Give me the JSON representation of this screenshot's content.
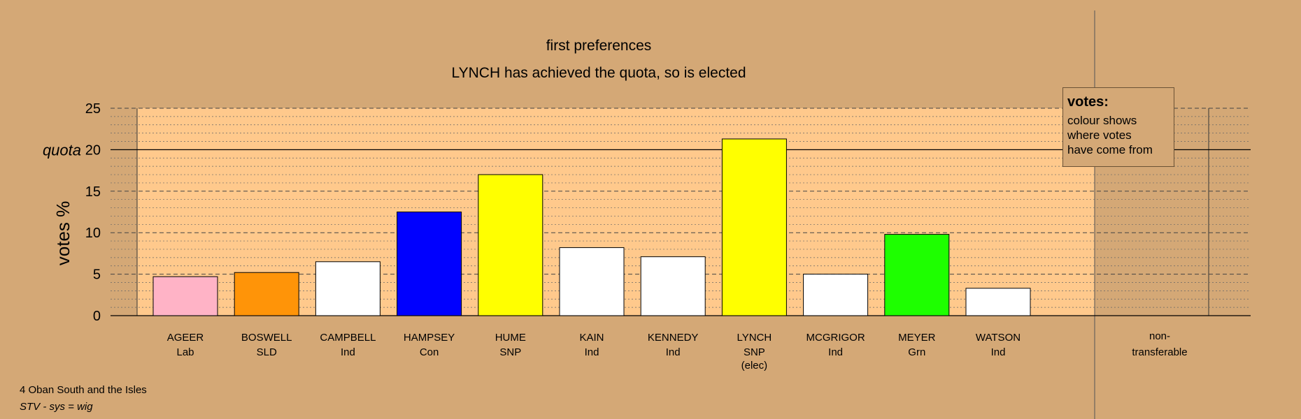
{
  "chart_data": {
    "type": "bar",
    "title": "first preferences",
    "subtitle": "LYNCH has achieved the quota, so is elected",
    "ylabel": "votes %",
    "ylim": [
      0,
      25
    ],
    "yticks": [
      0,
      5,
      10,
      15,
      20,
      25
    ],
    "quota": 20,
    "quota_label": "quota",
    "grid": true,
    "categories": [
      {
        "name": "AGEER",
        "party": "Lab",
        "note": "",
        "value": 4.7,
        "color": "#ffb3c6"
      },
      {
        "name": "BOSWELL",
        "party": "SLD",
        "note": "",
        "value": 5.2,
        "color": "#ff9408"
      },
      {
        "name": "CAMPBELL",
        "party": "Ind",
        "note": "",
        "value": 6.5,
        "color": "#ffffff"
      },
      {
        "name": "HAMPSEY",
        "party": "Con",
        "note": "",
        "value": 12.5,
        "color": "#0000ff"
      },
      {
        "name": "HUME",
        "party": "SNP",
        "note": "",
        "value": 17.0,
        "color": "#ffff00"
      },
      {
        "name": "KAIN",
        "party": "Ind",
        "note": "",
        "value": 8.2,
        "color": "#ffffff"
      },
      {
        "name": "KENNEDY",
        "party": "Ind",
        "note": "",
        "value": 7.1,
        "color": "#ffffff"
      },
      {
        "name": "LYNCH",
        "party": "SNP",
        "note": "(elec)",
        "value": 21.3,
        "color": "#ffff00"
      },
      {
        "name": "MCGRIGOR",
        "party": "Ind",
        "note": "",
        "value": 5.0,
        "color": "#ffffff"
      },
      {
        "name": "MEYER",
        "party": "Grn",
        "note": "",
        "value": 9.8,
        "color": "#1eff00"
      },
      {
        "name": "WATSON",
        "party": "Ind",
        "note": "",
        "value": 3.3,
        "color": "#ffffff"
      }
    ],
    "nontransferable": {
      "line1": "non-",
      "line2": "transferable",
      "value": 0
    },
    "legend": {
      "title": "votes:",
      "lines": [
        "colour shows",
        "where votes",
        "have come from"
      ],
      "placement": "top-right"
    }
  },
  "footer": {
    "ward": "4 Oban South and the Isles",
    "system": "STV - sys = wig"
  }
}
